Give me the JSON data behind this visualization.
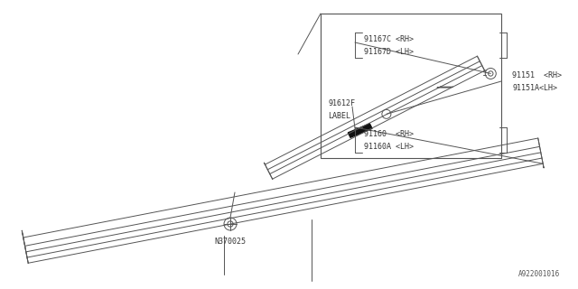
{
  "bg_color": "#ffffff",
  "line_color": "#555555",
  "dark_line": "#333333",
  "part_id": "A922001016",
  "labels": {
    "91167C_RH": "91167C <RH>",
    "91167D_LH": "91167D <LH>",
    "91151_RH": "91151  <RH>",
    "91151A_LH": "91151A<LH>",
    "91612F": "91612F",
    "LABEL": "LABEL",
    "91160_RH": "91160  <RH>",
    "91160A_LH": "91160A <LH>",
    "N370025": "N370025"
  }
}
